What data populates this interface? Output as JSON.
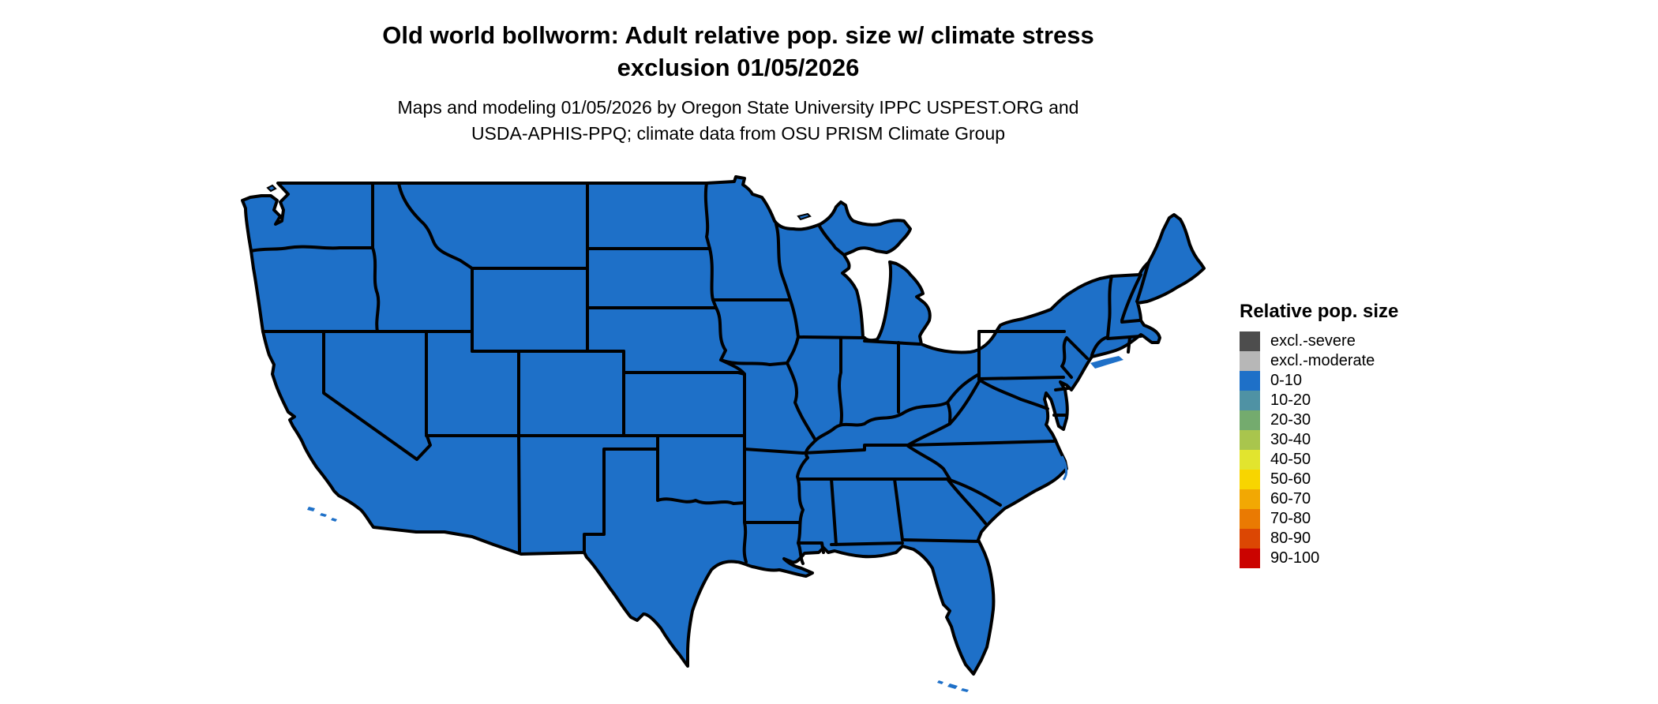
{
  "title": {
    "line1": "Old world bollworm: Adult relative pop. size w/ climate stress",
    "line2": "exclusion 01/05/2026"
  },
  "subtitle": {
    "line1": "Maps and modeling 01/05/2026 by Oregon State University IPPC USPEST.ORG and",
    "line2": "USDA-APHIS-PPQ; climate data from OSU PRISM Climate Group"
  },
  "legend": {
    "title": "Relative pop. size",
    "items": [
      {
        "label": "excl.-severe",
        "color": "#4d4d4d"
      },
      {
        "label": "excl.-moderate",
        "color": "#b7b7b7"
      },
      {
        "label": "0-10",
        "color": "#1e70c8"
      },
      {
        "label": "10-20",
        "color": "#4f92a4"
      },
      {
        "label": "20-30",
        "color": "#74ab6e"
      },
      {
        "label": "30-40",
        "color": "#a9c54d"
      },
      {
        "label": "40-50",
        "color": "#e2e42e"
      },
      {
        "label": "50-60",
        "color": "#f8d500"
      },
      {
        "label": "60-70",
        "color": "#f2a803"
      },
      {
        "label": "70-80",
        "color": "#ea7a02"
      },
      {
        "label": "80-90",
        "color": "#dc4703"
      },
      {
        "label": "90-100",
        "color": "#cb0300"
      }
    ]
  },
  "map": {
    "region": "Contiguous United States",
    "fill_category": "0-10",
    "fill_color": "#1e70c8",
    "border_color": "#000000",
    "water_color": "#ffffff"
  },
  "chart_data": {
    "type": "choropleth",
    "title": "Old world bollworm: Adult relative pop. size w/ climate stress exclusion 01/05/2026",
    "date": "01/05/2026",
    "legend_title": "Relative pop. size",
    "categories": [
      "excl.-severe",
      "excl.-moderate",
      "0-10",
      "10-20",
      "20-30",
      "30-40",
      "40-50",
      "50-60",
      "60-70",
      "70-80",
      "80-90",
      "90-100"
    ],
    "observation": "All states of the contiguous United States are shaded in the 0-10 relative population size class"
  }
}
